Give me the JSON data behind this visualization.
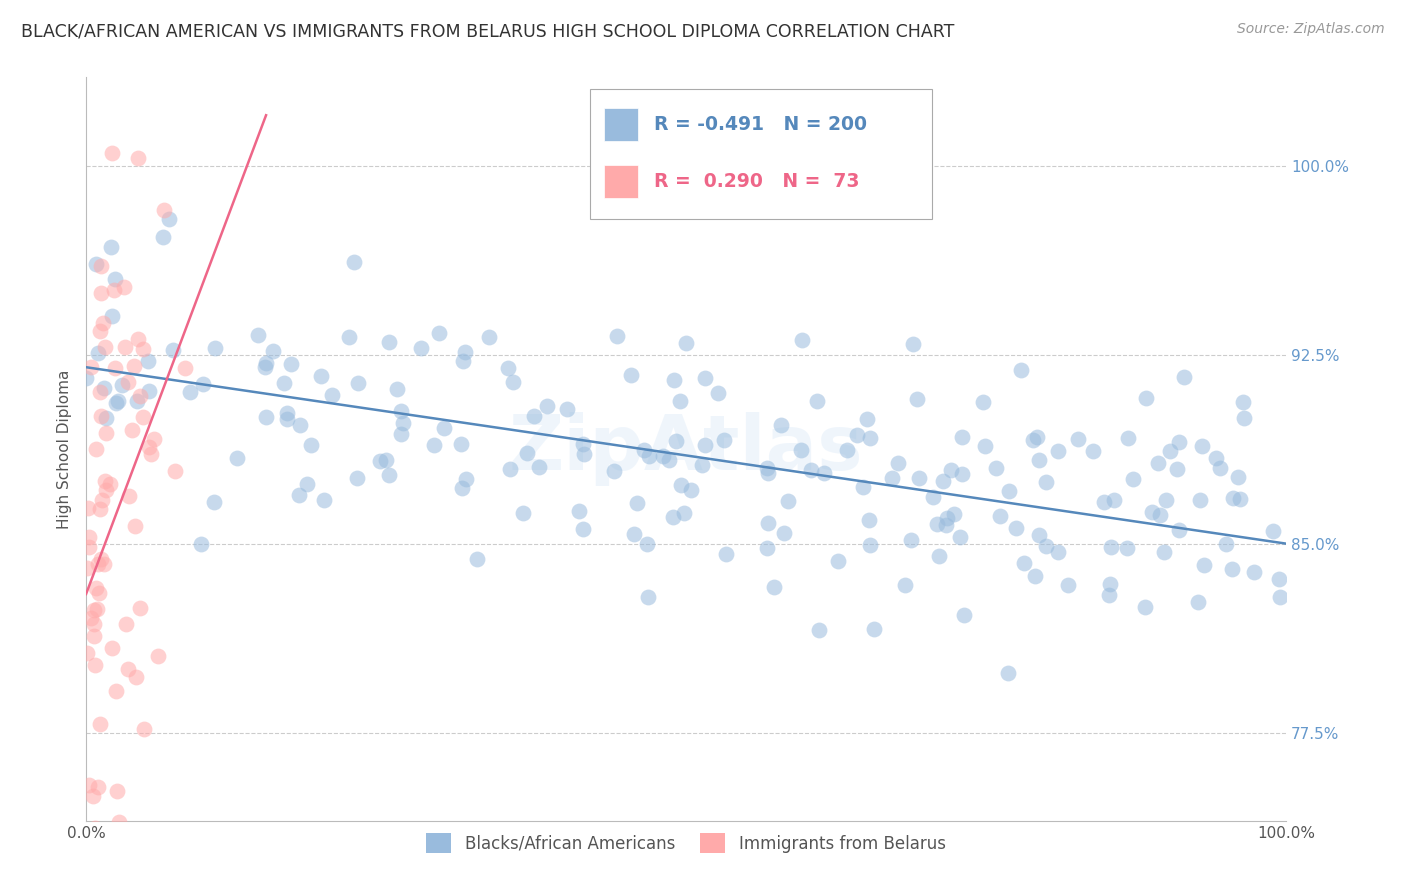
{
  "title": "BLACK/AFRICAN AMERICAN VS IMMIGRANTS FROM BELARUS HIGH SCHOOL DIPLOMA CORRELATION CHART",
  "source": "Source: ZipAtlas.com",
  "ylabel": "High School Diploma",
  "xlim": [
    0.0,
    100.0
  ],
  "ylim": [
    74.0,
    103.5
  ],
  "y_ticks": [
    77.5,
    85.0,
    92.5,
    100.0
  ],
  "blue_color": "#99BBDD",
  "pink_color": "#FFAAAA",
  "blue_line_color": "#5588BB",
  "pink_line_color": "#EE6688",
  "title_fontsize": 12.5,
  "axis_label_fontsize": 11,
  "tick_fontsize": 11,
  "blue_R": -0.491,
  "pink_R": 0.29,
  "blue_N": 200,
  "pink_N": 73,
  "watermark": "ZipAtlas",
  "background_color": "#FFFFFF",
  "grid_color": "#CCCCCC",
  "blue_line_y0": 92.0,
  "blue_line_y100": 85.0,
  "pink_line_y0": 83.0,
  "pink_line_y15": 102.0
}
